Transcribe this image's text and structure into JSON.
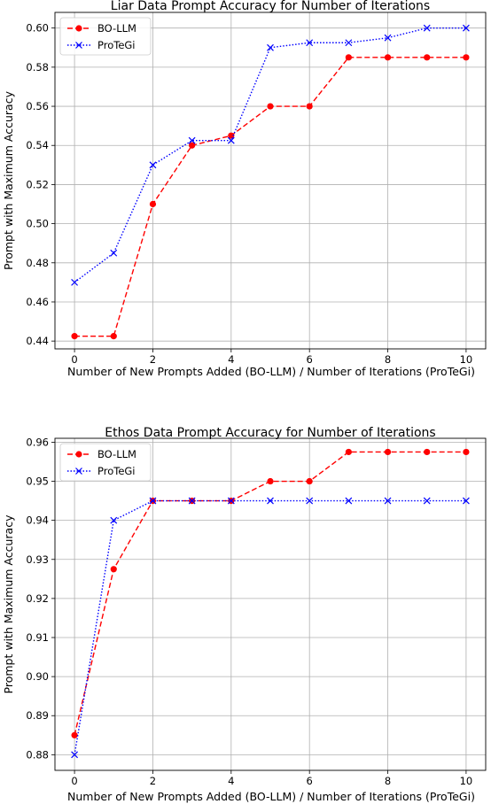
{
  "chart_data": [
    {
      "type": "line",
      "title": "Liar Data Prompt Accuracy for Number of Iterations",
      "xlabel": "Number of New Prompts Added (BO-LLM) / Number of Iterations (ProTeGi)",
      "ylabel": "Prompt with Maximum Accuracy",
      "xlim": [
        -0.5,
        10.5
      ],
      "ylim": [
        0.436,
        0.608
      ],
      "xticks": [
        0,
        2,
        4,
        6,
        8,
        10
      ],
      "yticks": [
        0.44,
        0.46,
        0.48,
        0.5,
        0.52,
        0.54,
        0.56,
        0.58,
        0.6
      ],
      "ytick_labels": [
        "0.44",
        "0.46",
        "0.48",
        "0.50",
        "0.52",
        "0.54",
        "0.56",
        "0.58",
        "0.60"
      ],
      "grid": true,
      "legend_position": "upper-left",
      "x": [
        0,
        1,
        2,
        3,
        4,
        5,
        6,
        7,
        8,
        9,
        10
      ],
      "series": [
        {
          "name": "BO-LLM",
          "color": "#ff0000",
          "marker": "circle",
          "linestyle": "dashed",
          "values": [
            0.4425,
            0.4425,
            0.51,
            0.54,
            0.545,
            0.56,
            0.56,
            0.585,
            0.585,
            0.585,
            0.585
          ]
        },
        {
          "name": "ProTeGi",
          "color": "#0000ff",
          "marker": "x",
          "linestyle": "dotted",
          "values": [
            0.47,
            0.485,
            0.53,
            0.5425,
            0.5425,
            0.59,
            0.5925,
            0.5925,
            0.595,
            0.6,
            0.6
          ]
        }
      ]
    },
    {
      "type": "line",
      "title": "Ethos Data Prompt Accuracy for Number of Iterations",
      "xlabel": "Number of New Prompts Added (BO-LLM) / Number of Iterations (ProTeGi)",
      "ylabel": "Prompt with Maximum Accuracy",
      "xlim": [
        -0.5,
        10.5
      ],
      "ylim": [
        0.876,
        0.961
      ],
      "xticks": [
        0,
        2,
        4,
        6,
        8,
        10
      ],
      "yticks": [
        0.88,
        0.89,
        0.9,
        0.91,
        0.92,
        0.93,
        0.94,
        0.95,
        0.96
      ],
      "ytick_labels": [
        "0.88",
        "0.89",
        "0.90",
        "0.91",
        "0.92",
        "0.93",
        "0.94",
        "0.95",
        "0.96"
      ],
      "grid": true,
      "legend_position": "upper-left",
      "x": [
        0,
        1,
        2,
        3,
        4,
        5,
        6,
        7,
        8,
        9,
        10
      ],
      "series": [
        {
          "name": "BO-LLM",
          "color": "#ff0000",
          "marker": "circle",
          "linestyle": "dashed",
          "values": [
            0.885,
            0.9275,
            0.945,
            0.945,
            0.945,
            0.95,
            0.95,
            0.9575,
            0.9575,
            0.9575,
            0.9575
          ]
        },
        {
          "name": "ProTeGi",
          "color": "#0000ff",
          "marker": "x",
          "linestyle": "dotted",
          "values": [
            0.88,
            0.94,
            0.945,
            0.945,
            0.945,
            0.945,
            0.945,
            0.945,
            0.945,
            0.945,
            0.945
          ]
        }
      ]
    }
  ]
}
